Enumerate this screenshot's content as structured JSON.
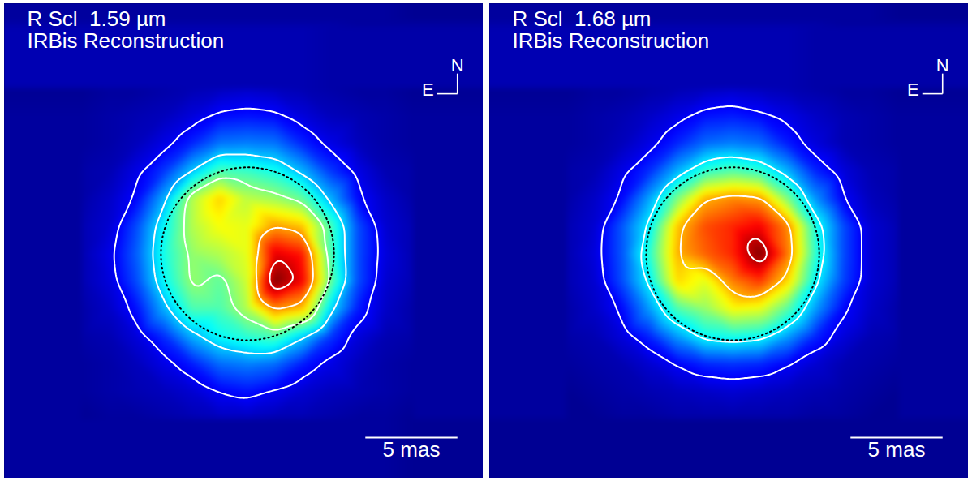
{
  "chart_data": [
    {
      "type": "heatmap",
      "title": "R Scl  1.59 µm",
      "subtitle": "IRBis Reconstruction",
      "compass": {
        "north": "N",
        "east": "E"
      },
      "scale_bar": {
        "length": 5,
        "label": "5 mas"
      },
      "xlim": [
        -13.2,
        12.8
      ],
      "ylim": [
        -12.2,
        13.6
      ],
      "tick_labels": false,
      "disk_center": [
        0,
        0
      ],
      "disk_diameter": 9.4,
      "intensity_range": [
        0,
        1
      ],
      "contour_levels": [
        0.12,
        0.32,
        0.5,
        0.72,
        0.9
      ],
      "x": [
        -9,
        -7.5,
        -6,
        -4.5,
        -3,
        -1.5,
        0,
        1.5,
        3,
        4.5,
        6,
        7.5,
        9
      ],
      "y": [
        9,
        7.5,
        6,
        4.5,
        3,
        1.5,
        0,
        -1.5,
        -3,
        -4.5,
        -6,
        -7.5,
        -9
      ],
      "intensity": [
        [
          0.02,
          0.03,
          0.03,
          0.04,
          0.05,
          0.06,
          0.07,
          0.06,
          0.05,
          0.04,
          0.03,
          0.03,
          0.02
        ],
        [
          0.03,
          0.04,
          0.05,
          0.06,
          0.09,
          0.13,
          0.14,
          0.13,
          0.09,
          0.06,
          0.05,
          0.04,
          0.03
        ],
        [
          0.03,
          0.04,
          0.06,
          0.1,
          0.16,
          0.24,
          0.25,
          0.24,
          0.16,
          0.1,
          0.06,
          0.04,
          0.03
        ],
        [
          0.04,
          0.05,
          0.1,
          0.18,
          0.32,
          0.45,
          0.43,
          0.39,
          0.3,
          0.18,
          0.1,
          0.05,
          0.04
        ],
        [
          0.04,
          0.07,
          0.13,
          0.3,
          0.55,
          0.67,
          0.56,
          0.53,
          0.47,
          0.3,
          0.13,
          0.07,
          0.04
        ],
        [
          0.05,
          0.08,
          0.2,
          0.38,
          0.55,
          0.62,
          0.6,
          0.72,
          0.68,
          0.45,
          0.2,
          0.08,
          0.05
        ],
        [
          0.05,
          0.1,
          0.22,
          0.4,
          0.52,
          0.55,
          0.6,
          0.9,
          0.85,
          0.45,
          0.2,
          0.09,
          0.05
        ],
        [
          0.05,
          0.09,
          0.2,
          0.38,
          0.52,
          0.47,
          0.58,
          1.0,
          0.88,
          0.48,
          0.2,
          0.08,
          0.05
        ],
        [
          0.04,
          0.07,
          0.14,
          0.3,
          0.45,
          0.45,
          0.55,
          0.74,
          0.68,
          0.35,
          0.15,
          0.07,
          0.04
        ],
        [
          0.04,
          0.05,
          0.09,
          0.17,
          0.3,
          0.38,
          0.42,
          0.45,
          0.33,
          0.18,
          0.09,
          0.05,
          0.04
        ],
        [
          0.03,
          0.04,
          0.06,
          0.1,
          0.15,
          0.23,
          0.25,
          0.23,
          0.15,
          0.1,
          0.06,
          0.04,
          0.03
        ],
        [
          0.03,
          0.04,
          0.05,
          0.06,
          0.08,
          0.12,
          0.14,
          0.11,
          0.08,
          0.06,
          0.05,
          0.04,
          0.03
        ],
        [
          0.02,
          0.03,
          0.03,
          0.04,
          0.05,
          0.06,
          0.06,
          0.05,
          0.05,
          0.04,
          0.03,
          0.03,
          0.02
        ]
      ]
    },
    {
      "type": "heatmap",
      "title": "R Scl  1.68 µm",
      "subtitle": "IRBis Reconstruction",
      "compass": {
        "north": "N",
        "east": "E"
      },
      "scale_bar": {
        "length": 5,
        "label": "5 mas"
      },
      "xlim": [
        -13.2,
        12.8
      ],
      "ylim": [
        -12.2,
        13.6
      ],
      "tick_labels": false,
      "disk_center": [
        0,
        0
      ],
      "disk_diameter": 9.4,
      "intensity_range": [
        0,
        1
      ],
      "contour_levels": [
        0.12,
        0.35,
        0.7,
        0.92
      ],
      "x": [
        -9,
        -7.5,
        -6,
        -4.5,
        -3,
        -1.5,
        0,
        1.5,
        3,
        4.5,
        6,
        7.5,
        9
      ],
      "y": [
        9,
        7.5,
        6,
        4.5,
        3,
        1.5,
        0,
        -1.5,
        -3,
        -4.5,
        -6,
        -7.5,
        -9
      ],
      "intensity": [
        [
          0.02,
          0.03,
          0.03,
          0.04,
          0.05,
          0.06,
          0.07,
          0.06,
          0.05,
          0.04,
          0.03,
          0.03,
          0.02
        ],
        [
          0.03,
          0.04,
          0.05,
          0.07,
          0.1,
          0.14,
          0.15,
          0.13,
          0.1,
          0.07,
          0.05,
          0.04,
          0.03
        ],
        [
          0.03,
          0.04,
          0.06,
          0.1,
          0.16,
          0.23,
          0.25,
          0.23,
          0.15,
          0.09,
          0.05,
          0.04,
          0.03
        ],
        [
          0.04,
          0.05,
          0.1,
          0.17,
          0.3,
          0.42,
          0.46,
          0.42,
          0.3,
          0.16,
          0.09,
          0.05,
          0.04
        ],
        [
          0.04,
          0.07,
          0.13,
          0.29,
          0.5,
          0.7,
          0.74,
          0.72,
          0.5,
          0.27,
          0.12,
          0.06,
          0.04
        ],
        [
          0.05,
          0.08,
          0.21,
          0.37,
          0.68,
          0.8,
          0.84,
          0.88,
          0.74,
          0.4,
          0.2,
          0.08,
          0.05
        ],
        [
          0.05,
          0.09,
          0.21,
          0.42,
          0.7,
          0.78,
          0.84,
          1.0,
          0.76,
          0.42,
          0.2,
          0.08,
          0.05
        ],
        [
          0.05,
          0.08,
          0.2,
          0.37,
          0.66,
          0.6,
          0.75,
          0.82,
          0.66,
          0.37,
          0.19,
          0.08,
          0.05
        ],
        [
          0.04,
          0.07,
          0.13,
          0.28,
          0.45,
          0.52,
          0.62,
          0.6,
          0.46,
          0.28,
          0.13,
          0.07,
          0.04
        ],
        [
          0.04,
          0.05,
          0.09,
          0.16,
          0.28,
          0.38,
          0.4,
          0.38,
          0.28,
          0.16,
          0.09,
          0.05,
          0.04
        ],
        [
          0.03,
          0.04,
          0.05,
          0.08,
          0.12,
          0.16,
          0.17,
          0.16,
          0.12,
          0.08,
          0.05,
          0.04,
          0.03
        ],
        [
          0.02,
          0.03,
          0.04,
          0.05,
          0.06,
          0.07,
          0.08,
          0.07,
          0.06,
          0.05,
          0.04,
          0.03,
          0.02
        ],
        [
          0.02,
          0.02,
          0.03,
          0.03,
          0.04,
          0.04,
          0.04,
          0.04,
          0.04,
          0.03,
          0.03,
          0.02,
          0.02
        ]
      ]
    }
  ]
}
